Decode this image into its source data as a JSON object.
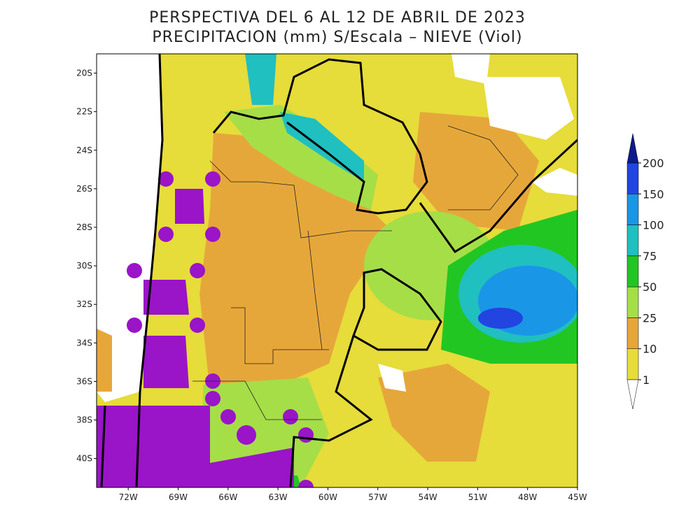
{
  "map": {
    "title": [
      "PERSPECTIVA DEL 6 AL 12 DE ABRIL DE 2023",
      "PRECIPITACION (mm) S/Escala – NIEVE (Viol)"
    ],
    "xlim": [
      -73.9,
      -45
    ],
    "ylim": [
      -41.5,
      -19
    ],
    "yticks": [
      {
        "value": -20,
        "label": "20S"
      },
      {
        "value": -22,
        "label": "22S"
      },
      {
        "value": -24,
        "label": "24S"
      },
      {
        "value": -26,
        "label": "26S"
      },
      {
        "value": -28,
        "label": "28S"
      },
      {
        "value": -30,
        "label": "30S"
      },
      {
        "value": -32,
        "label": "32S"
      },
      {
        "value": -34,
        "label": "34S"
      },
      {
        "value": -36,
        "label": "36S"
      },
      {
        "value": -38,
        "label": "38S"
      },
      {
        "value": -40,
        "label": "40S"
      }
    ],
    "xticks": [
      {
        "value": -72,
        "label": "72W"
      },
      {
        "value": -69,
        "label": "69W"
      },
      {
        "value": -66,
        "label": "66W"
      },
      {
        "value": -63,
        "label": "63W"
      },
      {
        "value": -60,
        "label": "60W"
      },
      {
        "value": -57,
        "label": "57W"
      },
      {
        "value": -54,
        "label": "54W"
      },
      {
        "value": -51,
        "label": "51W"
      },
      {
        "value": -48,
        "label": "48W"
      },
      {
        "value": -45,
        "label": "45W"
      }
    ],
    "legend": {
      "levels": [
        1,
        10,
        25,
        50,
        75,
        100,
        150,
        200
      ],
      "colors": [
        "#ffffff",
        "#e6dc3a",
        "#e6a73a",
        "#a6de48",
        "#22c622",
        "#20bfc0",
        "#1a96e6",
        "#2244e0",
        "#0c1a8c"
      ]
    }
  }
}
